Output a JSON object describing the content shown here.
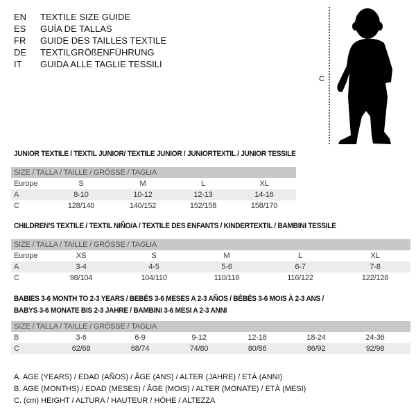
{
  "languages": [
    {
      "code": "EN",
      "title": "TEXTILE SIZE GUIDE"
    },
    {
      "code": "ES",
      "title": "GUÍA DE TALLAS"
    },
    {
      "code": "FR",
      "title": "GUIDE DES TAILLES TEXTILE"
    },
    {
      "code": "DE",
      "title": "TEXTILGRÖßENFÜHRUNG"
    },
    {
      "code": "IT",
      "title": "GUIDA ALLE TAGLIE TESSILI"
    }
  ],
  "figure": {
    "measure_label": "C",
    "icon": "child-silhouette"
  },
  "junior": {
    "title": "JUNIOR TEXTILE / TEXTIL JUNIOR/ TEXTILE JUNIOR / JUNIORTEXTIL / JUNIOR TESSILE",
    "header": "SIZE / TALLA / TAILLE / GRÖSSE / TAGLIA",
    "rows": [
      {
        "label": "Europe",
        "values": [
          "S",
          "M",
          "L",
          "XL"
        ]
      },
      {
        "label": "A",
        "values": [
          "8-10",
          "10-12",
          "12-13",
          "14-16"
        ]
      },
      {
        "label": "C",
        "values": [
          "128/140",
          "140/152",
          "152/158",
          "158/170"
        ]
      }
    ]
  },
  "children": {
    "title": "CHILDREN'S TEXTILE / TEXTIL NIÑO/A / TEXTILE DES ENFANTS / KINDERTEXTIL / BAMBINI TESSILE",
    "header": "SIZE / TALLA / TAILLE / GRÖSSE / TAGLIA",
    "rows": [
      {
        "label": "Europe",
        "values": [
          "XS",
          "S",
          "M",
          "L",
          "XL"
        ]
      },
      {
        "label": "A",
        "values": [
          "3-4",
          "4-5",
          "5-6",
          "6-7",
          "7-8"
        ]
      },
      {
        "label": "C",
        "values": [
          "98/104",
          "104/110",
          "110/116",
          "116/122",
          "122/128"
        ]
      }
    ]
  },
  "babies": {
    "title_line1": "BABIES 3-6 MONTH TO 2-3 YEARS / BEBÉS 3-6 MESES A 2-3 AÑOS / BÉBÉS 3-6 MOIS À 2-3 ANS /",
    "title_line2": "BABYS 3-6 MONATE BIS 2-3 JAHRE / BAMBINI 3-6 MESI A 2-3 ANNI",
    "header": "SIZE / TALLA / TAILLE / GRÖSSE / TAGLIA",
    "rows": [
      {
        "label": "B",
        "values": [
          "3-6",
          "6-9",
          "9-12",
          "12-18",
          "18-24",
          "24-36"
        ]
      },
      {
        "label": "C",
        "values": [
          "62/68",
          "68/74",
          "74/80",
          "80/86",
          "86/92",
          "92/98"
        ]
      }
    ]
  },
  "legend": [
    "A. AGE (YEARS) / EDAD (AÑOS) / ÂGE (ANS) / ALTER (JAHRE) / ETÀ (ANNI)",
    "B. AGE (MONTHS) / EDAD (MESES) / ÂGE (MOIS) / ALTER (MONATE) / ETÀ (MESI)",
    "C. (cm) HEIGHT / ALTURA / HAUTEUR / HÖHE / ALTEZZA"
  ]
}
